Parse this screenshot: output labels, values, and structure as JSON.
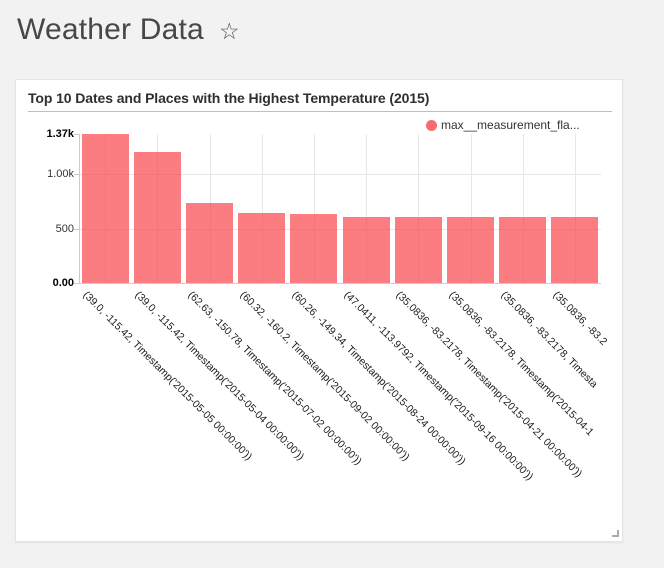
{
  "page": {
    "title": "Weather Data",
    "star_icon": "☆"
  },
  "card": {
    "title": "Top 10 Dates and Places with the Highest Temperature (2015)",
    "legend_label": "max__measurement_fla..."
  },
  "colors": {
    "series": "#f94b52",
    "legend_dot": "#fa6a6e",
    "page_background": "#f2f2f2",
    "card_background": "#ffffff",
    "gridline": "#e7e7e7",
    "axis": "#cccccc"
  },
  "chart_data": {
    "type": "bar",
    "title": "Top 10 Dates and Places with the Highest Temperature (2015)",
    "legend": [
      "max__measurement_fla..."
    ],
    "legend_position": "top-right",
    "grid": true,
    "xlabel": "",
    "ylabel": "",
    "ylim": [
      0,
      1370
    ],
    "yticks": [
      {
        "value": 1370,
        "label": "1.37k",
        "bold": true,
        "grid": false
      },
      {
        "value": 1000,
        "label": "1.00k",
        "bold": false,
        "grid": true
      },
      {
        "value": 500,
        "label": "500",
        "bold": false,
        "grid": true
      },
      {
        "value": 0,
        "label": "0.00",
        "bold": true,
        "grid": false
      }
    ],
    "categories": [
      "(39.0, -115.42, Timestamp('2015-05-05 00:00:00'))",
      "(39.0, -115.42, Timestamp('2015-05-04 00:00:00'))",
      "(62.63, -150.78, Timestamp('2015-07-02 00:00:00'))",
      "(60.32, -160.2, Timestamp('2015-09-02 00:00:00'))",
      "(60.26, -149.34, Timestamp('2015-08-24 00:00:00'))",
      "(47.0411, -113.9792, Timestamp('2015-09-16 00:00:00'))",
      "(35.0836, -83.2178, Timestamp('2015-04-21 00:00:00'))",
      "(35.0836, -83.2178, Timestamp('2015-04-1",
      "(35.0836, -83.2178, Timesta",
      "(35.0836, -83.2"
    ],
    "series": [
      {
        "name": "max__measurement_fla...",
        "values": [
          1370,
          1200,
          732,
          645,
          639,
          607,
          605,
          605,
          604,
          603
        ]
      }
    ]
  }
}
